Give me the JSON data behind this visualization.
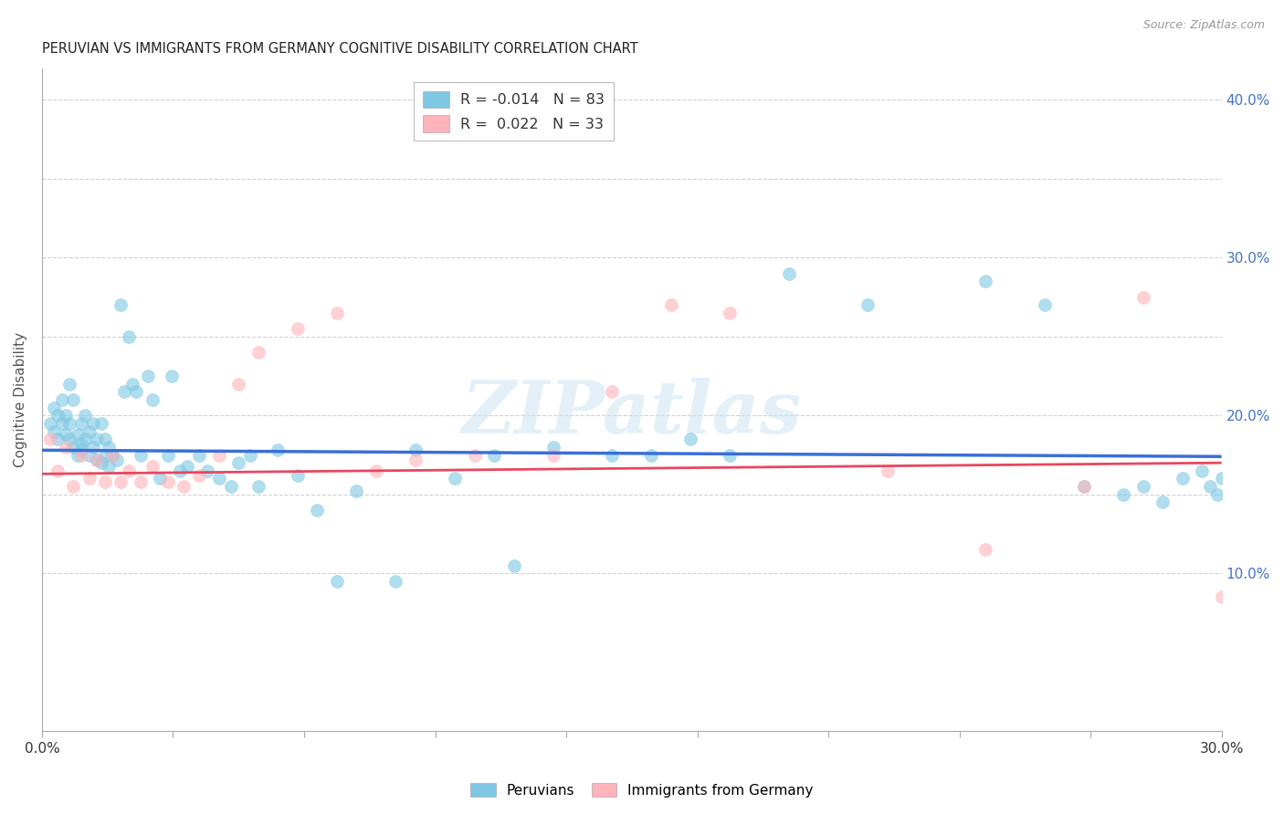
{
  "title": "PERUVIAN VS IMMIGRANTS FROM GERMANY COGNITIVE DISABILITY CORRELATION CHART",
  "source": "Source: ZipAtlas.com",
  "ylabel": "Cognitive Disability",
  "xlim": [
    0.0,
    0.3
  ],
  "ylim": [
    0.0,
    0.42
  ],
  "ytick_vals": [
    0.1,
    0.2,
    0.3,
    0.4
  ],
  "ytick_labels": [
    "10.0%",
    "20.0%",
    "30.0%",
    "40.0%"
  ],
  "peruvian_color": "#7ec8e3",
  "germany_color": "#ffb3ba",
  "peruvian_line_color": "#3a6fd8",
  "germany_line_color": "#e8475f",
  "watermark": "ZIPatlas",
  "peru_R": -0.014,
  "peru_N": 83,
  "germ_R": 0.022,
  "germ_N": 33,
  "peru_line_y0": 0.178,
  "peru_line_y1": 0.174,
  "germ_line_y0": 0.163,
  "germ_line_y1": 0.17,
  "peru_x": [
    0.002,
    0.003,
    0.003,
    0.004,
    0.004,
    0.005,
    0.005,
    0.006,
    0.006,
    0.007,
    0.007,
    0.007,
    0.008,
    0.008,
    0.009,
    0.009,
    0.01,
    0.01,
    0.01,
    0.011,
    0.011,
    0.012,
    0.012,
    0.013,
    0.013,
    0.014,
    0.014,
    0.015,
    0.015,
    0.016,
    0.016,
    0.017,
    0.017,
    0.018,
    0.019,
    0.02,
    0.021,
    0.022,
    0.023,
    0.024,
    0.025,
    0.027,
    0.028,
    0.03,
    0.032,
    0.033,
    0.035,
    0.037,
    0.04,
    0.042,
    0.045,
    0.048,
    0.05,
    0.053,
    0.055,
    0.06,
    0.065,
    0.07,
    0.075,
    0.08,
    0.09,
    0.095,
    0.105,
    0.115,
    0.12,
    0.13,
    0.145,
    0.155,
    0.165,
    0.175,
    0.19,
    0.21,
    0.24,
    0.255,
    0.265,
    0.275,
    0.28,
    0.285,
    0.29,
    0.295,
    0.297,
    0.299,
    0.3
  ],
  "peru_y": [
    0.195,
    0.205,
    0.19,
    0.2,
    0.185,
    0.195,
    0.21,
    0.188,
    0.2,
    0.185,
    0.195,
    0.22,
    0.18,
    0.21,
    0.188,
    0.175,
    0.182,
    0.195,
    0.178,
    0.185,
    0.2,
    0.175,
    0.19,
    0.18,
    0.195,
    0.172,
    0.185,
    0.17,
    0.195,
    0.175,
    0.185,
    0.168,
    0.18,
    0.175,
    0.172,
    0.27,
    0.215,
    0.25,
    0.22,
    0.215,
    0.175,
    0.225,
    0.21,
    0.16,
    0.175,
    0.225,
    0.165,
    0.168,
    0.175,
    0.165,
    0.16,
    0.155,
    0.17,
    0.175,
    0.155,
    0.178,
    0.162,
    0.14,
    0.095,
    0.152,
    0.095,
    0.178,
    0.16,
    0.175,
    0.105,
    0.18,
    0.175,
    0.175,
    0.185,
    0.175,
    0.29,
    0.27,
    0.285,
    0.27,
    0.155,
    0.15,
    0.155,
    0.145,
    0.16,
    0.165,
    0.155,
    0.15,
    0.16
  ],
  "germ_x": [
    0.002,
    0.004,
    0.006,
    0.008,
    0.01,
    0.012,
    0.014,
    0.016,
    0.018,
    0.02,
    0.022,
    0.025,
    0.028,
    0.032,
    0.036,
    0.04,
    0.045,
    0.05,
    0.055,
    0.065,
    0.075,
    0.085,
    0.095,
    0.11,
    0.13,
    0.145,
    0.16,
    0.175,
    0.215,
    0.24,
    0.265,
    0.28,
    0.3
  ],
  "germ_y": [
    0.185,
    0.165,
    0.18,
    0.155,
    0.175,
    0.16,
    0.172,
    0.158,
    0.175,
    0.158,
    0.165,
    0.158,
    0.168,
    0.158,
    0.155,
    0.162,
    0.175,
    0.22,
    0.24,
    0.255,
    0.265,
    0.165,
    0.172,
    0.175,
    0.175,
    0.215,
    0.27,
    0.265,
    0.165,
    0.115,
    0.155,
    0.275,
    0.085
  ]
}
